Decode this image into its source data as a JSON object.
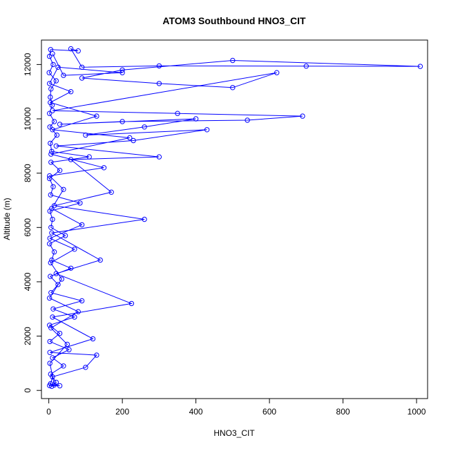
{
  "chart_data": {
    "type": "line",
    "title": "ATOM3 Southbound HNO3_CIT",
    "xlabel": "HNO3_CIT",
    "ylabel": "Altitude (m)",
    "xlim": [
      -20,
      1030
    ],
    "ylim": [
      -300,
      12900
    ],
    "xticks": [
      0,
      200,
      400,
      600,
      800,
      1000
    ],
    "yticks": [
      0,
      2000,
      4000,
      6000,
      8000,
      10000,
      12000
    ],
    "grid": false,
    "marker": "open-circle",
    "series_color": "#0000ff",
    "series": [
      {
        "name": "",
        "points": [
          [
            8,
            150
          ],
          [
            20,
            300
          ],
          [
            5,
            600
          ],
          [
            40,
            900
          ],
          [
            10,
            1200
          ],
          [
            55,
            1500
          ],
          [
            3,
            1800
          ],
          [
            30,
            2100
          ],
          [
            2,
            2400
          ],
          [
            70,
            2700
          ],
          [
            12,
            3000
          ],
          [
            90,
            3300
          ],
          [
            6,
            3600
          ],
          [
            25,
            3900
          ],
          [
            4,
            4200
          ],
          [
            60,
            4500
          ],
          [
            8,
            4800
          ],
          [
            15,
            5100
          ],
          [
            2,
            5400
          ],
          [
            45,
            5700
          ],
          [
            6,
            6000
          ],
          [
            10,
            6300
          ],
          [
            3,
            6600
          ],
          [
            85,
            6900
          ],
          [
            5,
            7200
          ],
          [
            12,
            7500
          ],
          [
            2,
            7800
          ],
          [
            30,
            8100
          ],
          [
            6,
            8400
          ],
          [
            110,
            8600
          ],
          [
            8,
            8800
          ],
          [
            4,
            9100
          ],
          [
            22,
            9400
          ],
          [
            3,
            9700
          ],
          [
            15,
            9900
          ],
          [
            2,
            10200
          ],
          [
            9,
            10500
          ],
          [
            4,
            10800
          ],
          [
            6,
            11100
          ],
          [
            20,
            11400
          ],
          [
            1,
            11700
          ],
          [
            12,
            12000
          ],
          [
            2,
            12300
          ],
          [
            5,
            12550
          ],
          [
            80,
            12500
          ],
          [
            60,
            12580
          ],
          [
            90,
            11900
          ],
          [
            300,
            11950
          ],
          [
            700,
            11940
          ],
          [
            1010,
            11930
          ],
          [
            500,
            12150
          ],
          [
            200,
            11800
          ],
          [
            90,
            11500
          ],
          [
            300,
            11300
          ],
          [
            500,
            11150
          ],
          [
            620,
            11700
          ],
          [
            10,
            10300
          ],
          [
            350,
            10200
          ],
          [
            690,
            10100
          ],
          [
            540,
            9950
          ],
          [
            200,
            9900
          ],
          [
            30,
            9800
          ],
          [
            400,
            10000
          ],
          [
            260,
            9700
          ],
          [
            100,
            9400
          ],
          [
            430,
            9600
          ],
          [
            230,
            9200
          ],
          [
            20,
            9000
          ],
          [
            300,
            8600
          ],
          [
            60,
            8500
          ],
          [
            170,
            7300
          ],
          [
            15,
            6800
          ],
          [
            260,
            6300
          ],
          [
            8,
            5800
          ],
          [
            140,
            4800
          ],
          [
            20,
            4300
          ],
          [
            225,
            3200
          ],
          [
            10,
            2700
          ],
          [
            120,
            1900
          ],
          [
            3,
            1400
          ],
          [
            130,
            1300
          ],
          [
            100,
            850
          ],
          [
            10,
            500
          ],
          [
            5,
            250
          ],
          [
            2,
            180
          ],
          [
            30,
            170
          ],
          [
            15,
            200
          ],
          [
            3,
            1000
          ],
          [
            50,
            1700
          ],
          [
            6,
            2300
          ],
          [
            80,
            2900
          ],
          [
            2,
            3400
          ],
          [
            35,
            4100
          ],
          [
            5,
            4700
          ],
          [
            70,
            5200
          ],
          [
            3,
            5600
          ],
          [
            90,
            6100
          ],
          [
            8,
            6700
          ],
          [
            40,
            7400
          ],
          [
            2,
            7900
          ],
          [
            150,
            8200
          ],
          [
            6,
            8700
          ],
          [
            220,
            9300
          ],
          [
            10,
            9600
          ],
          [
            130,
            10100
          ],
          [
            4,
            10600
          ],
          [
            60,
            11000
          ],
          [
            2,
            11300
          ],
          [
            25,
            11900
          ],
          [
            200,
            11700
          ],
          [
            40,
            11600
          ],
          [
            10,
            12400
          ]
        ]
      }
    ]
  }
}
